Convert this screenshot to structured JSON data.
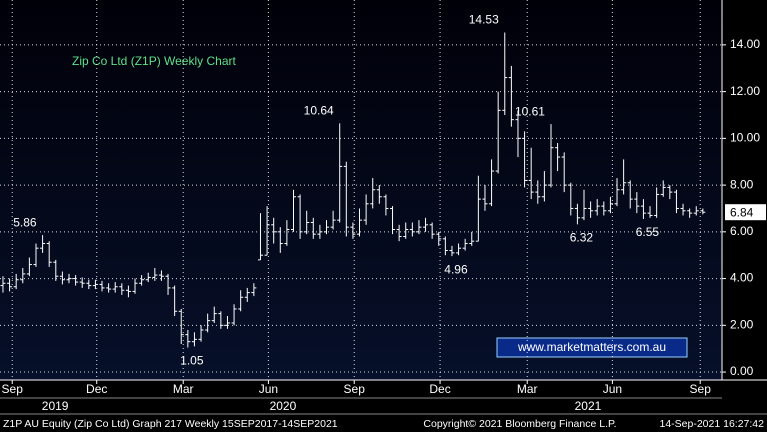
{
  "chart_data": {
    "type": "ohlc",
    "title": "Zip Co Ltd (Z1P) Weekly Chart",
    "color": "#ffffff",
    "grid": true,
    "open": [
      3.7,
      3.8,
      3.65,
      3.95,
      4.2,
      4.6,
      5.3,
      5.5,
      4.7,
      4.1,
      3.95,
      4.0,
      3.85,
      3.8,
      3.7,
      3.75,
      3.6,
      3.55,
      3.65,
      3.5,
      3.45,
      3.8,
      3.95,
      4.05,
      4.15,
      4.1,
      3.6,
      2.6,
      1.6,
      1.3,
      1.4,
      1.8,
      2.2,
      2.5,
      2.0,
      2.1,
      2.7,
      3.2,
      3.4,
      4.8,
      5.0,
      6.3,
      6.0,
      5.5,
      6.1,
      7.5,
      6.0,
      6.4,
      5.9,
      6.0,
      6.2,
      6.5,
      8.8,
      6.2,
      5.9,
      6.5,
      7.2,
      7.8,
      7.5,
      7.0,
      6.1,
      5.8,
      6.1,
      6.0,
      6.2,
      6.3,
      5.9,
      5.7,
      5.2,
      5.1,
      5.3,
      5.5,
      5.6,
      7.4,
      7.2,
      8.6,
      11.2,
      12.6,
      10.8,
      10.0,
      8.2,
      7.7,
      7.5,
      8.0,
      9.6,
      9.2,
      8.0,
      7.0,
      6.6,
      7.0,
      6.9,
      7.1,
      6.9,
      7.2,
      7.8,
      8.1,
      7.4,
      7.1,
      6.8,
      6.7,
      7.6,
      7.9,
      7.7,
      7.0,
      6.9,
      6.8,
      6.9
    ],
    "high": [
      4.1,
      4.0,
      4.2,
      4.45,
      4.9,
      5.5,
      5.86,
      5.6,
      4.8,
      4.3,
      4.2,
      4.15,
      4.05,
      3.95,
      3.95,
      3.9,
      3.8,
      3.85,
      3.8,
      3.7,
      4.0,
      4.15,
      4.25,
      4.45,
      4.35,
      4.2,
      3.7,
      2.7,
      1.8,
      1.7,
      2.0,
      2.5,
      2.8,
      2.6,
      2.4,
      2.9,
      3.5,
      3.6,
      3.8,
      6.8,
      7.1,
      6.6,
      6.2,
      6.5,
      7.8,
      7.6,
      6.9,
      6.6,
      6.3,
      6.5,
      6.9,
      10.64,
      9.0,
      6.4,
      7.0,
      7.6,
      8.3,
      8.0,
      7.6,
      7.1,
      6.3,
      6.4,
      6.4,
      6.5,
      6.6,
      6.4,
      6.0,
      5.8,
      5.4,
      5.5,
      5.7,
      6.0,
      8.4,
      8.0,
      9.1,
      12.0,
      14.53,
      13.1,
      11.2,
      10.3,
      9.6,
      8.2,
      8.6,
      10.61,
      9.8,
      9.4,
      8.1,
      7.2,
      7.8,
      7.3,
      7.4,
      7.3,
      7.5,
      8.3,
      9.1,
      8.2,
      7.7,
      7.4,
      7.1,
      7.9,
      8.2,
      8.0,
      7.8,
      7.2,
      7.0,
      7.1,
      7.0
    ],
    "low": [
      3.4,
      3.45,
      3.55,
      3.8,
      4.1,
      4.5,
      5.1,
      4.5,
      3.9,
      3.75,
      3.8,
      3.7,
      3.6,
      3.55,
      3.55,
      3.45,
      3.4,
      3.4,
      3.3,
      3.2,
      3.35,
      3.7,
      3.85,
      3.9,
      3.9,
      3.3,
      2.4,
      1.2,
      1.05,
      1.1,
      1.3,
      1.7,
      2.1,
      1.85,
      1.85,
      2.0,
      2.6,
      3.0,
      3.25,
      4.8,
      5.0,
      5.5,
      5.1,
      5.4,
      6.0,
      5.7,
      5.9,
      5.7,
      5.7,
      5.9,
      6.1,
      6.4,
      5.8,
      5.7,
      5.8,
      6.3,
      7.0,
      7.2,
      6.7,
      5.9,
      5.6,
      5.7,
      5.8,
      5.9,
      6.0,
      5.7,
      5.4,
      5.0,
      4.96,
      5.0,
      5.2,
      5.4,
      5.6,
      6.9,
      7.1,
      8.5,
      11.0,
      10.5,
      9.2,
      7.9,
      7.4,
      7.2,
      7.3,
      7.9,
      8.6,
      7.7,
      6.7,
      6.32,
      6.5,
      6.6,
      6.7,
      6.7,
      6.8,
      7.1,
      7.6,
      7.0,
      6.8,
      6.55,
      6.6,
      6.6,
      7.5,
      7.4,
      6.8,
      6.7,
      6.6,
      6.7,
      6.75
    ],
    "close": [
      3.8,
      3.65,
      3.95,
      4.2,
      4.6,
      5.3,
      5.5,
      4.7,
      4.1,
      3.95,
      4.0,
      3.85,
      3.8,
      3.7,
      3.75,
      3.6,
      3.55,
      3.65,
      3.5,
      3.45,
      3.8,
      3.95,
      4.05,
      4.15,
      4.1,
      3.6,
      2.6,
      1.6,
      1.3,
      1.4,
      1.8,
      2.2,
      2.5,
      2.0,
      2.1,
      2.7,
      3.2,
      3.4,
      3.6,
      5.0,
      6.3,
      6.0,
      5.5,
      6.1,
      7.5,
      6.0,
      6.4,
      5.9,
      6.0,
      6.2,
      6.5,
      8.8,
      6.2,
      5.9,
      6.5,
      7.2,
      7.8,
      7.5,
      7.0,
      6.1,
      5.8,
      6.1,
      6.0,
      6.2,
      6.3,
      5.9,
      5.7,
      5.2,
      5.1,
      5.3,
      5.5,
      5.6,
      7.4,
      7.2,
      8.6,
      11.2,
      12.6,
      10.8,
      10.0,
      8.2,
      7.7,
      7.5,
      8.0,
      9.6,
      9.2,
      8.0,
      7.0,
      6.6,
      7.0,
      6.9,
      7.1,
      6.9,
      7.2,
      7.8,
      8.1,
      7.4,
      7.1,
      6.8,
      6.7,
      7.6,
      7.9,
      7.7,
      7.0,
      6.9,
      6.8,
      6.9,
      6.84
    ],
    "annotations": [
      5.86,
      1.05,
      10.64,
      4.96,
      14.53,
      10.61,
      6.32,
      6.55
    ],
    "xlim": [
      -0.45,
      108.9
    ],
    "ylim": [
      -0.34,
      15.92
    ],
    "yticks": [
      {
        "value": 0,
        "label": "0.00"
      },
      {
        "value": 2,
        "label": "2.00"
      },
      {
        "value": 4,
        "label": "4.00"
      },
      {
        "value": 6,
        "label": "6.00"
      },
      {
        "value": 8,
        "label": "8.00"
      },
      {
        "value": 10,
        "label": "10.00"
      },
      {
        "value": 12,
        "label": "12.00"
      },
      {
        "value": 14,
        "label": "14.00"
      }
    ],
    "xticks": [
      {
        "value": 1.4,
        "label": "Sep"
      },
      {
        "value": 14.2,
        "label": "Dec"
      },
      {
        "value": 27.3,
        "label": "Mar"
      },
      {
        "value": 40.2,
        "label": "Jun"
      },
      {
        "value": 53.2,
        "label": "Sep"
      },
      {
        "value": 66.2,
        "label": "Dec"
      },
      {
        "value": 79.4,
        "label": "Mar"
      },
      {
        "value": 92.3,
        "label": "Jun"
      },
      {
        "value": 105.6,
        "label": "Sep"
      }
    ],
    "xyears": [
      {
        "value": 7.9,
        "label": "2019"
      },
      {
        "value": 42.4,
        "label": "2020"
      },
      {
        "value": 88.6,
        "label": "2021"
      }
    ]
  },
  "watermark": "www.marketmatters.com.au",
  "footer": {
    "left": "Z1P AU Equity (Zip Co Ltd) Graph 217  Weekly 15SEP2017-14SEP2021",
    "center": "Copyright© 2021 Bloomberg Finance L.P.",
    "right": "14-Sep-2021 16:27:42"
  }
}
